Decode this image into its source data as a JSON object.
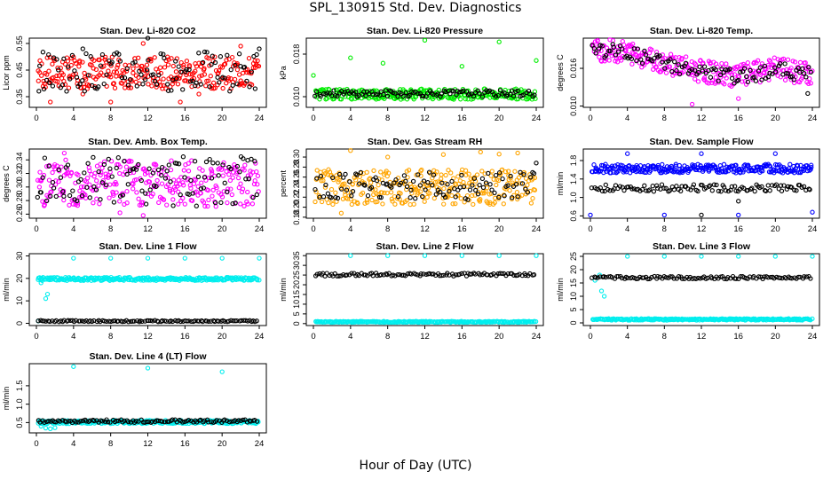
{
  "title": "SPL_130915  Std. Dev. Diagnostics",
  "xlabel": "Hour of Day (UTC)",
  "chart_data": [
    {
      "type": "scatter",
      "title": "Stan. Dev. Li-820 CO2",
      "ylabel": "Licor ppm",
      "xticks": [
        "0",
        "4",
        "8",
        "12",
        "16",
        "20",
        "24"
      ],
      "yticks": [
        "0.35",
        "0.45",
        "0.55"
      ],
      "xlim": [
        0,
        24
      ],
      "ylim": [
        0.31,
        0.57
      ],
      "series": [
        {
          "color": "#ff0000",
          "band": [
            0.38,
            0.5
          ],
          "outliers": [
            [
              1.5,
              0.33
            ],
            [
              8.0,
              0.33
            ],
            [
              15.5,
              0.33
            ],
            [
              11.5,
              0.55
            ],
            [
              22.0,
              0.54
            ],
            [
              5.0,
              0.36
            ],
            [
              17.5,
              0.36
            ]
          ]
        },
        {
          "color": "#000000",
          "band": [
            0.37,
            0.52
          ],
          "outliers": [
            [
              5.0,
              0.53
            ],
            [
              12.0,
              0.57
            ],
            [
              24.0,
              0.53
            ]
          ]
        }
      ]
    },
    {
      "type": "scatter",
      "title": "Stan. Dev. Li-820 Pressure",
      "ylabel": "kPa",
      "xticks": [
        "0",
        "4",
        "8",
        "12",
        "16",
        "20",
        "24"
      ],
      "yticks": [
        "0.010",
        "0.018"
      ],
      "xlim": [
        0,
        24
      ],
      "ylim": [
        0.008,
        0.021
      ],
      "series": [
        {
          "color": "#00ee00",
          "band": [
            0.0095,
            0.0115
          ],
          "outliers": [
            [
              0.0,
              0.014
            ],
            [
              4.0,
              0.0173
            ],
            [
              7.5,
              0.0163
            ],
            [
              12.0,
              0.0206
            ],
            [
              16.0,
              0.0157
            ],
            [
              20.0,
              0.0203
            ],
            [
              24.0,
              0.0168
            ]
          ]
        },
        {
          "color": "#000000",
          "band": [
            0.01,
            0.0112
          ],
          "outliers": []
        }
      ]
    },
    {
      "type": "scatter",
      "title": "Stan. Dev. Li-820 Temp.",
      "ylabel": "degrees C",
      "xticks": [
        "0",
        "4",
        "8",
        "12",
        "16",
        "20",
        "24"
      ],
      "yticks": [
        "0.010",
        "0.016"
      ],
      "xlim": [
        0,
        24
      ],
      "ylim": [
        0.0098,
        0.0208
      ],
      "series": [
        {
          "color": "#ff00ff",
          "trend": [
            [
              0,
              0.019
            ],
            [
              4,
              0.0186
            ],
            [
              8,
              0.017
            ],
            [
              12,
              0.0155
            ],
            [
              16,
              0.0148
            ],
            [
              20,
              0.016
            ],
            [
              24,
              0.015
            ]
          ],
          "spread": 0.0018,
          "outliers": [
            [
              11.0,
              0.0103
            ],
            [
              16.0,
              0.0112
            ]
          ]
        },
        {
          "color": "#000000",
          "trend": [
            [
              0,
              0.019
            ],
            [
              4,
              0.0185
            ],
            [
              8,
              0.0168
            ],
            [
              12,
              0.0153
            ],
            [
              16,
              0.0146
            ],
            [
              20,
              0.0158
            ],
            [
              24,
              0.015
            ]
          ],
          "spread": 0.0012,
          "outliers": [
            [
              23.5,
              0.012
            ]
          ]
        }
      ]
    },
    {
      "type": "scatter",
      "title": "Stan. Dev. Amb. Box Temp.",
      "ylabel": "degrees C",
      "xticks": [
        "0",
        "4",
        "8",
        "12",
        "16",
        "20",
        "24"
      ],
      "yticks": [
        "0.26",
        "0.28",
        "0.30",
        "0.32",
        "0.34"
      ],
      "xlim": [
        0,
        24
      ],
      "ylim": [
        0.254,
        0.356
      ],
      "series": [
        {
          "color": "#ff00ff",
          "band": [
            0.27,
            0.34
          ],
          "outliers": [
            [
              9.0,
              0.262
            ],
            [
              11.5,
              0.258
            ],
            [
              3.0,
              0.35
            ]
          ]
        },
        {
          "color": "#000000",
          "band": [
            0.272,
            0.345
          ],
          "outliers": [
            [
              0.5,
              0.292
            ]
          ]
        }
      ]
    },
    {
      "type": "scatter",
      "title": "Stan. Dev. Gas Stream RH",
      "ylabel": "percent",
      "xticks": [
        "0",
        "4",
        "8",
        "12",
        "16",
        "20",
        "24"
      ],
      "yticks": [
        "0.18",
        "0.20",
        "0.22",
        "0.24",
        "0.26",
        "0.28",
        "0.30"
      ],
      "xlim": [
        0,
        24
      ],
      "ylim": [
        0.178,
        0.316
      ],
      "series": [
        {
          "color": "#ffa500",
          "band": [
            0.205,
            0.275
          ],
          "outliers": [
            [
              3.0,
              0.188
            ],
            [
              4.0,
              0.313
            ],
            [
              8.0,
              0.3
            ],
            [
              14.0,
              0.305
            ],
            [
              18.0,
              0.31
            ],
            [
              20.0,
              0.306
            ],
            [
              22.0,
              0.308
            ]
          ]
        },
        {
          "color": "#000000",
          "band": [
            0.215,
            0.27
          ],
          "outliers": [
            [
              24.0,
              0.288
            ]
          ]
        }
      ]
    },
    {
      "type": "scatter",
      "title": "Stan. Dev. Sample Flow",
      "ylabel": "ml/min",
      "xticks": [
        "0",
        "4",
        "8",
        "12",
        "16",
        "20",
        "24"
      ],
      "yticks": [
        "0.6",
        "1.0",
        "1.4",
        "1.8"
      ],
      "xlim": [
        0,
        24
      ],
      "ylim": [
        0.55,
        2.05
      ],
      "series": [
        {
          "color": "#0000ff",
          "band": [
            1.53,
            1.72
          ],
          "outliers": [
            [
              0.0,
              0.62
            ],
            [
              4.0,
              1.95
            ],
            [
              8.0,
              0.62
            ],
            [
              12.0,
              1.95
            ],
            [
              16.0,
              0.62
            ],
            [
              20.0,
              1.95
            ],
            [
              24.0,
              0.68
            ]
          ]
        },
        {
          "color": "#000000",
          "band": [
            1.13,
            1.28
          ],
          "outliers": [
            [
              12.0,
              0.62
            ],
            [
              16.0,
              0.92
            ]
          ]
        }
      ]
    },
    {
      "type": "scatter",
      "title": "Stan. Dev. Line 1 Flow",
      "ylabel": "ml/min",
      "xticks": [
        "0",
        "4",
        "8",
        "12",
        "16",
        "20",
        "24"
      ],
      "yticks": [
        "0",
        "10",
        "20",
        "30"
      ],
      "xlim": [
        0,
        24
      ],
      "ylim": [
        -1,
        31
      ],
      "series": [
        {
          "color": "#00eeee",
          "band": [
            19.0,
            20.5
          ],
          "outliers": [
            [
              4.0,
              29
            ],
            [
              8.0,
              29
            ],
            [
              12.0,
              29
            ],
            [
              16.0,
              29
            ],
            [
              20.0,
              29
            ],
            [
              24.0,
              29
            ],
            [
              0.2,
              1
            ],
            [
              1.0,
              11
            ],
            [
              1.2,
              13
            ],
            [
              0.5,
              18
            ]
          ]
        },
        {
          "color": "#000000",
          "band": [
            0.7,
            1.3
          ],
          "outliers": []
        }
      ]
    },
    {
      "type": "scatter",
      "title": "Stan. Dev. Line 2 Flow",
      "ylabel": "ml/min",
      "xticks": [
        "0",
        "4",
        "8",
        "12",
        "16",
        "20",
        "24"
      ],
      "yticks": [
        "0",
        "5",
        "10",
        "15",
        "20",
        "25",
        "30",
        "35"
      ],
      "xlim": [
        0,
        24
      ],
      "ylim": [
        -1,
        36
      ],
      "series": [
        {
          "color": "#00eeee",
          "band": [
            0.6,
            1.2
          ],
          "outliers": [
            [
              4.0,
              35
            ],
            [
              8.0,
              35
            ],
            [
              12.0,
              35
            ],
            [
              16.0,
              35
            ],
            [
              20.0,
              35
            ],
            [
              24.0,
              35
            ]
          ]
        },
        {
          "color": "#000000",
          "band": [
            24.5,
            26.0
          ],
          "outliers": []
        }
      ]
    },
    {
      "type": "scatter",
      "title": "Stan. Dev. Line 3 Flow",
      "ylabel": "ml/min",
      "xticks": [
        "0",
        "4",
        "8",
        "12",
        "16",
        "20",
        "24"
      ],
      "yticks": [
        "0",
        "5",
        "10",
        "15",
        "20",
        "25"
      ],
      "xlim": [
        0,
        24
      ],
      "ylim": [
        -1,
        26
      ],
      "series": [
        {
          "color": "#00eeee",
          "band": [
            1.0,
            1.6
          ],
          "outliers": [
            [
              4.0,
              25
            ],
            [
              8.0,
              25
            ],
            [
              12.0,
              25
            ],
            [
              16.0,
              25
            ],
            [
              20.0,
              25
            ],
            [
              24.0,
              25
            ],
            [
              0.5,
              16
            ],
            [
              1.0,
              18
            ],
            [
              1.2,
              12
            ],
            [
              1.5,
              10
            ]
          ]
        },
        {
          "color": "#000000",
          "band": [
            16.5,
            17.5
          ],
          "outliers": []
        }
      ]
    },
    {
      "type": "scatter",
      "title": "Stan. Dev. Line 4 (LT) Flow",
      "ylabel": "ml/min",
      "xticks": [
        "0",
        "4",
        "8",
        "12",
        "16",
        "20",
        "24"
      ],
      "yticks": [
        "0.5",
        "1.0",
        "1.5"
      ],
      "xlim": [
        0,
        24
      ],
      "ylim": [
        0.22,
        2.1
      ],
      "series": [
        {
          "color": "#00eeee",
          "band": [
            0.47,
            0.56
          ],
          "outliers": [
            [
              4.0,
              2.02
            ],
            [
              12.0,
              1.98
            ],
            [
              20.0,
              1.88
            ],
            [
              0.5,
              0.4
            ],
            [
              1.0,
              0.35
            ],
            [
              1.5,
              0.33
            ],
            [
              2.0,
              0.36
            ]
          ]
        },
        {
          "color": "#000000",
          "band": [
            0.5,
            0.58
          ],
          "outliers": []
        }
      ]
    }
  ]
}
